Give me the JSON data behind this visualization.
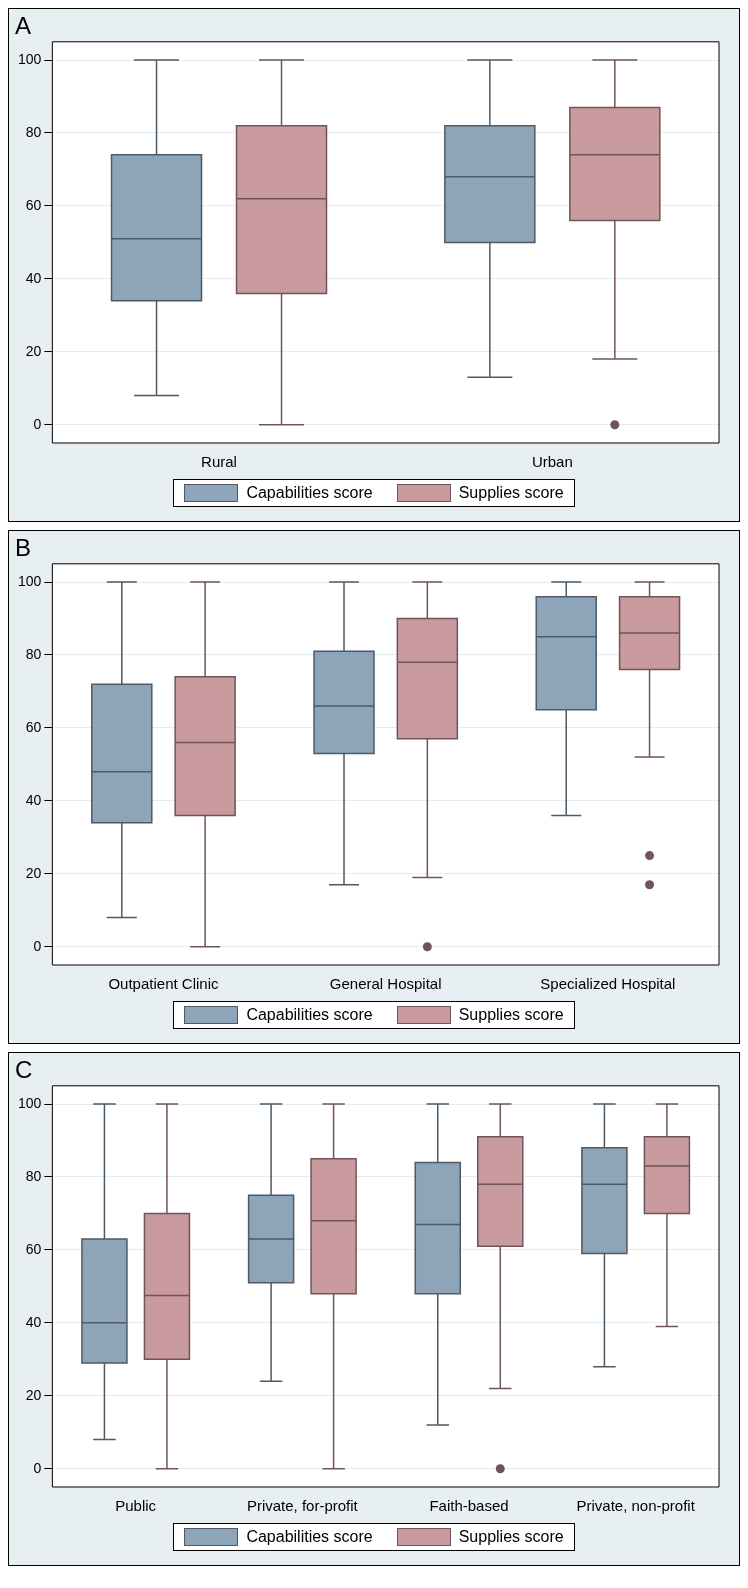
{
  "chart_data": [
    {
      "type": "box",
      "title": "A",
      "categories": [
        "Rural",
        "Urban"
      ],
      "ylim": [
        -5,
        105
      ],
      "yticks": [
        0,
        20,
        40,
        60,
        80,
        100
      ],
      "grid": "y",
      "legend": "bottom",
      "series": [
        {
          "name": "Capabilities score",
          "color": "#8ea4b8",
          "boxes": [
            {
              "low": 8,
              "q1": 34,
              "median": 51,
              "q3": 74,
              "high": 100
            },
            {
              "low": 13,
              "q1": 50,
              "median": 68,
              "q3": 82,
              "high": 100
            }
          ]
        },
        {
          "name": "Supplies score",
          "color": "#c99a9e",
          "boxes": [
            {
              "low": 0,
              "q1": 36,
              "median": 62,
              "q3": 82,
              "high": 100
            },
            {
              "low": 18,
              "q1": 56,
              "median": 74,
              "q3": 87,
              "high": 100,
              "outliers": [
                0
              ]
            }
          ]
        }
      ]
    },
    {
      "type": "box",
      "title": "B",
      "categories": [
        "Outpatient Clinic",
        "General Hospital",
        "Specialized Hospital"
      ],
      "ylim": [
        -5,
        105
      ],
      "yticks": [
        0,
        20,
        40,
        60,
        80,
        100
      ],
      "grid": "y",
      "legend": "bottom",
      "series": [
        {
          "name": "Capabilities score",
          "color": "#8ea4b8",
          "boxes": [
            {
              "low": 8,
              "q1": 34,
              "median": 48,
              "q3": 72,
              "high": 100
            },
            {
              "low": 17,
              "q1": 53,
              "median": 66,
              "q3": 81,
              "high": 100
            },
            {
              "low": 36,
              "q1": 65,
              "median": 85,
              "q3": 96,
              "high": 100
            }
          ]
        },
        {
          "name": "Supplies score",
          "color": "#c99a9e",
          "boxes": [
            {
              "low": 0,
              "q1": 36,
              "median": 56,
              "q3": 74,
              "high": 100
            },
            {
              "low": 19,
              "q1": 57,
              "median": 78,
              "q3": 90,
              "high": 100,
              "outliers": [
                0
              ]
            },
            {
              "low": 52,
              "q1": 76,
              "median": 86,
              "q3": 96,
              "high": 100,
              "outliers": [
                25,
                17
              ]
            }
          ]
        }
      ]
    },
    {
      "type": "box",
      "title": "C",
      "categories": [
        "Public",
        "Private, for-profit",
        "Faith-based",
        "Private, non-profit"
      ],
      "ylim": [
        -5,
        105
      ],
      "yticks": [
        0,
        20,
        40,
        60,
        80,
        100
      ],
      "grid": "y",
      "legend": "bottom",
      "series": [
        {
          "name": "Capabilities score",
          "color": "#8ea4b8",
          "boxes": [
            {
              "low": 8,
              "q1": 29,
              "median": 40,
              "q3": 63,
              "high": 100
            },
            {
              "low": 24,
              "q1": 51,
              "median": 63,
              "q3": 75,
              "high": 100
            },
            {
              "low": 12,
              "q1": 48,
              "median": 67,
              "q3": 84,
              "high": 100
            },
            {
              "low": 28,
              "q1": 59,
              "median": 78,
              "q3": 88,
              "high": 100
            }
          ]
        },
        {
          "name": "Supplies score",
          "color": "#c99a9e",
          "boxes": [
            {
              "low": 0,
              "q1": 30,
              "median": 47.5,
              "q3": 70,
              "high": 100
            },
            {
              "low": 0,
              "q1": 48,
              "median": 68,
              "q3": 85,
              "high": 100
            },
            {
              "low": 22,
              "q1": 61,
              "median": 78,
              "q3": 91,
              "high": 100,
              "outliers": [
                0
              ]
            },
            {
              "low": 39,
              "q1": 70,
              "median": 83,
              "q3": 91,
              "high": 100
            }
          ]
        }
      ]
    }
  ]
}
